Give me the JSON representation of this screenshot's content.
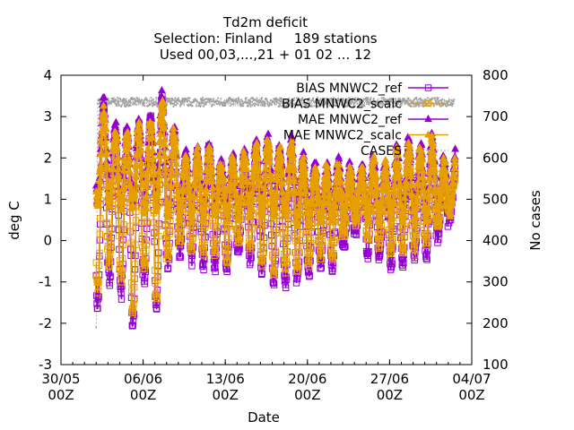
{
  "chart_data": {
    "type": "line",
    "title": [
      "Td2m deficit",
      "Selection: Finland     189 stations",
      "Used 00,03,...,21 + 01 02 ... 12"
    ],
    "xlabel": "Date",
    "ylabel": "deg C",
    "y2label": "No cases",
    "xlim": [
      "2024-05-30T00:00",
      "2024-07-04T00:00"
    ],
    "ylim": [
      -3,
      4
    ],
    "y2lim": [
      100,
      800
    ],
    "x_ticks": [
      {
        "line1": "30/05",
        "line2": "00Z"
      },
      {
        "line1": "06/06",
        "line2": "00Z"
      },
      {
        "line1": "13/06",
        "line2": "00Z"
      },
      {
        "line1": "20/06",
        "line2": "00Z"
      },
      {
        "line1": "27/06",
        "line2": "00Z"
      },
      {
        "line1": "04/07",
        "line2": "00Z"
      }
    ],
    "y_ticks": [
      "-3",
      "-2",
      "-1",
      "0",
      "1",
      "2",
      "3",
      "4"
    ],
    "y2_ticks": [
      "100",
      "200",
      "300",
      "400",
      "500",
      "600",
      "700",
      "800"
    ],
    "grid": false,
    "legend_position": "top-right",
    "data_window": [
      "2024-06-02T00:00",
      "2024-07-02T12:00"
    ],
    "series": [
      {
        "name": "BIAS MNWC2_ref",
        "axis": "y1",
        "color": "#9400d3",
        "marker": "square",
        "daily_min": [
          -1.6,
          -1.0,
          -1.3,
          -2.1,
          -1.0,
          -1.7,
          -0.6,
          -0.3,
          -0.5,
          -0.6,
          -0.6,
          -0.7,
          -0.3,
          -0.5,
          -0.8,
          -1.1,
          -1.0,
          -1.0,
          -0.8,
          -0.6,
          -0.7,
          -0.1,
          0.2,
          -0.3,
          -0.4,
          -0.6,
          -0.6,
          -0.5,
          -0.4,
          0.1,
          0.5
        ],
        "daily_max": [
          3.3,
          2.6,
          2.6,
          2.8,
          3.0,
          3.5,
          2.6,
          1.9,
          2.1,
          2.2,
          1.8,
          1.9,
          2.0,
          2.2,
          2.3,
          2.1,
          2.2,
          1.8,
          1.6,
          1.5,
          1.7,
          1.6,
          1.5,
          1.7,
          1.6,
          1.8,
          2.1,
          2.0,
          2.1,
          1.6,
          1.7
        ]
      },
      {
        "name": "BIAS MNWC2_scalc",
        "axis": "y1",
        "color": "#e69f00",
        "marker": "square",
        "daily_min": [
          -1.2,
          -0.6,
          -0.9,
          -1.7,
          -0.7,
          -1.4,
          -0.3,
          0.0,
          -0.2,
          -0.3,
          -0.3,
          -0.4,
          0.0,
          -0.2,
          -0.5,
          -0.8,
          -0.7,
          -0.7,
          -0.5,
          -0.3,
          -0.4,
          0.2,
          0.5,
          0.0,
          -0.1,
          -0.3,
          -0.3,
          -0.2,
          -0.1,
          0.4,
          0.8
        ],
        "daily_max": [
          3.0,
          2.4,
          2.4,
          2.6,
          2.8,
          3.2,
          2.4,
          1.8,
          2.0,
          2.1,
          1.7,
          1.8,
          1.9,
          2.1,
          2.2,
          2.0,
          2.1,
          1.7,
          1.5,
          1.4,
          1.6,
          1.5,
          1.4,
          1.6,
          1.5,
          1.7,
          2.0,
          1.9,
          2.0,
          1.5,
          1.6
        ]
      },
      {
        "name": "MAE MNWC2_ref",
        "axis": "y1",
        "color": "#9400d3",
        "marker": "triangle",
        "daily_min": [
          1.0,
          0.9,
          0.9,
          1.0,
          0.8,
          0.9,
          0.7,
          0.7,
          0.7,
          0.7,
          0.7,
          0.7,
          0.7,
          0.7,
          0.7,
          0.7,
          0.7,
          0.6,
          0.6,
          0.6,
          0.6,
          0.6,
          0.7,
          0.6,
          0.6,
          0.6,
          0.6,
          0.6,
          0.6,
          0.7,
          0.8
        ],
        "daily_max": [
          3.4,
          2.8,
          2.7,
          2.9,
          3.0,
          3.5,
          2.7,
          2.1,
          2.2,
          2.3,
          1.9,
          2.0,
          2.2,
          2.4,
          2.5,
          2.3,
          2.4,
          2.0,
          1.8,
          1.8,
          1.9,
          1.8,
          1.8,
          2.0,
          1.9,
          2.2,
          2.4,
          2.3,
          2.5,
          2.0,
          2.1
        ]
      },
      {
        "name": "MAE MNWC2_scalc",
        "axis": "y1",
        "color": "#e69f00",
        "marker": "triangle",
        "daily_min": [
          0.9,
          0.8,
          0.8,
          0.9,
          0.7,
          0.8,
          0.6,
          0.6,
          0.6,
          0.6,
          0.6,
          0.6,
          0.6,
          0.6,
          0.6,
          0.6,
          0.6,
          0.5,
          0.5,
          0.5,
          0.5,
          0.5,
          0.6,
          0.5,
          0.5,
          0.5,
          0.5,
          0.5,
          0.5,
          0.6,
          0.7
        ],
        "daily_max": [
          3.2,
          2.6,
          2.5,
          2.7,
          2.8,
          3.3,
          2.6,
          2.0,
          2.1,
          2.2,
          1.8,
          1.9,
          2.1,
          2.3,
          2.4,
          2.2,
          2.3,
          1.9,
          1.7,
          1.7,
          1.8,
          1.7,
          1.7,
          1.9,
          1.8,
          2.1,
          2.3,
          2.2,
          2.4,
          1.9,
          2.0
        ]
      },
      {
        "name": "CASES",
        "axis": "y2",
        "color": "#a0a0a0",
        "marker": "dot",
        "dashed": true,
        "typical": 735,
        "start_dip": 190
      }
    ]
  }
}
